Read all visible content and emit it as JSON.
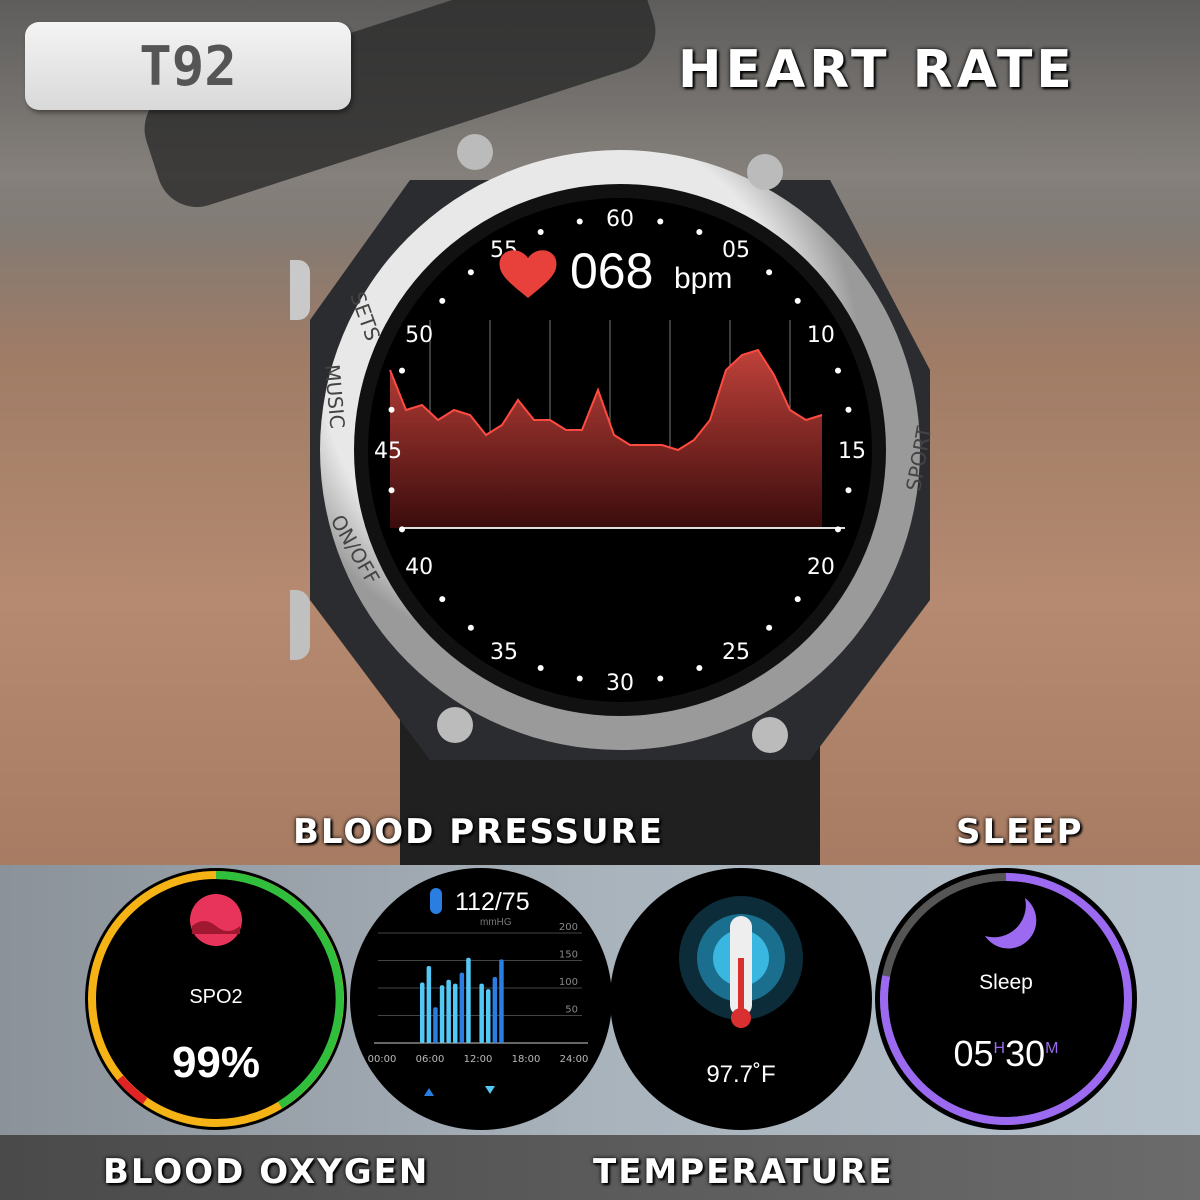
{
  "badge": {
    "model": "T92"
  },
  "headings": {
    "heart_rate": "HEART RATE",
    "blood_pressure": "BLOOD PRESSURE",
    "sleep": "SLEEP",
    "blood_oxygen": "BLOOD OXYGEN",
    "temperature": "TEMPERATURE"
  },
  "watch": {
    "heart_rate_value": "068",
    "heart_rate_unit": "bpm",
    "dial_numbers": [
      "60",
      "05",
      "10",
      "15",
      "20",
      "25",
      "30",
      "35",
      "40",
      "45",
      "50",
      "55"
    ],
    "bezel_labels": {
      "sets": "SETS",
      "music": "MUSIC",
      "onoff": "ON/OFF",
      "sport": "SPORT"
    },
    "accent": "#e8413c"
  },
  "spo2": {
    "label": "SPO2",
    "value": "99%",
    "colors": [
      "#f5b316",
      "#2fbf3c",
      "#e02424"
    ]
  },
  "blood_pressure": {
    "value": "112/75",
    "unit": "mmHG",
    "y_ticks": [
      "200",
      "150",
      "100",
      "50"
    ],
    "x_ticks": [
      "00:00",
      "06:00",
      "12:00",
      "18:00",
      "24:00"
    ],
    "bars": [
      110,
      140,
      65,
      105,
      115,
      108,
      128,
      155,
      null,
      108,
      98,
      120,
      152
    ],
    "colors": [
      "#54c8f5",
      "#2a7de1"
    ]
  },
  "temperature": {
    "value": "97.7˚F"
  },
  "sleep": {
    "label": "Sleep",
    "hours": "05",
    "h_unit": "H",
    "minutes": "30",
    "m_unit": "M",
    "progress": 0.78,
    "color": "#9b6af0"
  }
}
